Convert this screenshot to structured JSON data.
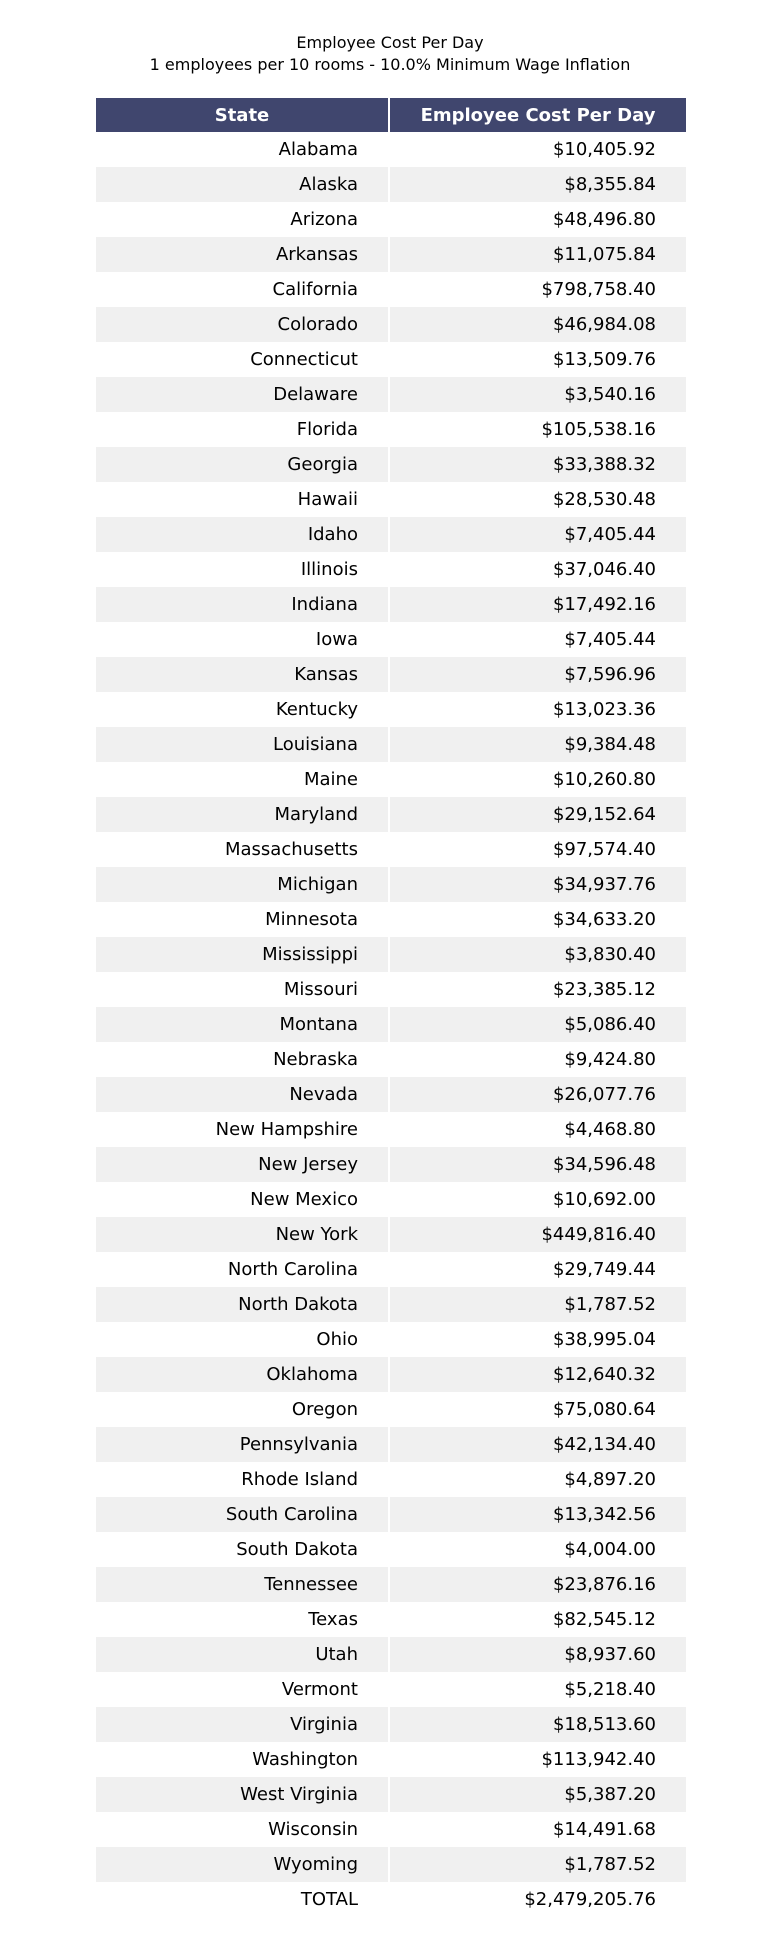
{
  "chart_data": {
    "type": "table",
    "title": "Employee Cost Per Day",
    "subtitle": "1 employees per 10 rooms - 10.0% Minimum Wage Inflation",
    "columns": [
      "State",
      "Employee Cost Per Day"
    ],
    "rows": [
      [
        "Alabama",
        "$10,405.92"
      ],
      [
        "Alaska",
        "$8,355.84"
      ],
      [
        "Arizona",
        "$48,496.80"
      ],
      [
        "Arkansas",
        "$11,075.84"
      ],
      [
        "California",
        "$798,758.40"
      ],
      [
        "Colorado",
        "$46,984.08"
      ],
      [
        "Connecticut",
        "$13,509.76"
      ],
      [
        "Delaware",
        "$3,540.16"
      ],
      [
        "Florida",
        "$105,538.16"
      ],
      [
        "Georgia",
        "$33,388.32"
      ],
      [
        "Hawaii",
        "$28,530.48"
      ],
      [
        "Idaho",
        "$7,405.44"
      ],
      [
        "Illinois",
        "$37,046.40"
      ],
      [
        "Indiana",
        "$17,492.16"
      ],
      [
        "Iowa",
        "$7,405.44"
      ],
      [
        "Kansas",
        "$7,596.96"
      ],
      [
        "Kentucky",
        "$13,023.36"
      ],
      [
        "Louisiana",
        "$9,384.48"
      ],
      [
        "Maine",
        "$10,260.80"
      ],
      [
        "Maryland",
        "$29,152.64"
      ],
      [
        "Massachusetts",
        "$97,574.40"
      ],
      [
        "Michigan",
        "$34,937.76"
      ],
      [
        "Minnesota",
        "$34,633.20"
      ],
      [
        "Mississippi",
        "$3,830.40"
      ],
      [
        "Missouri",
        "$23,385.12"
      ],
      [
        "Montana",
        "$5,086.40"
      ],
      [
        "Nebraska",
        "$9,424.80"
      ],
      [
        "Nevada",
        "$26,077.76"
      ],
      [
        "New Hampshire",
        "$4,468.80"
      ],
      [
        "New Jersey",
        "$34,596.48"
      ],
      [
        "New Mexico",
        "$10,692.00"
      ],
      [
        "New York",
        "$449,816.40"
      ],
      [
        "North Carolina",
        "$29,749.44"
      ],
      [
        "North Dakota",
        "$1,787.52"
      ],
      [
        "Ohio",
        "$38,995.04"
      ],
      [
        "Oklahoma",
        "$12,640.32"
      ],
      [
        "Oregon",
        "$75,080.64"
      ],
      [
        "Pennsylvania",
        "$42,134.40"
      ],
      [
        "Rhode Island",
        "$4,897.20"
      ],
      [
        "South Carolina",
        "$13,342.56"
      ],
      [
        "South Dakota",
        "$4,004.00"
      ],
      [
        "Tennessee",
        "$23,876.16"
      ],
      [
        "Texas",
        "$82,545.12"
      ],
      [
        "Utah",
        "$8,937.60"
      ],
      [
        "Vermont",
        "$5,218.40"
      ],
      [
        "Virginia",
        "$18,513.60"
      ],
      [
        "Washington",
        "$113,942.40"
      ],
      [
        "West Virginia",
        "$5,387.20"
      ],
      [
        "Wisconsin",
        "$14,491.68"
      ],
      [
        "Wyoming",
        "$1,787.52"
      ],
      [
        "TOTAL",
        "$2,479,205.76"
      ]
    ]
  },
  "colors": {
    "header_bg": "#40466e",
    "header_text": "#ffffff",
    "alt_row_bg": "#f0f0f0"
  }
}
